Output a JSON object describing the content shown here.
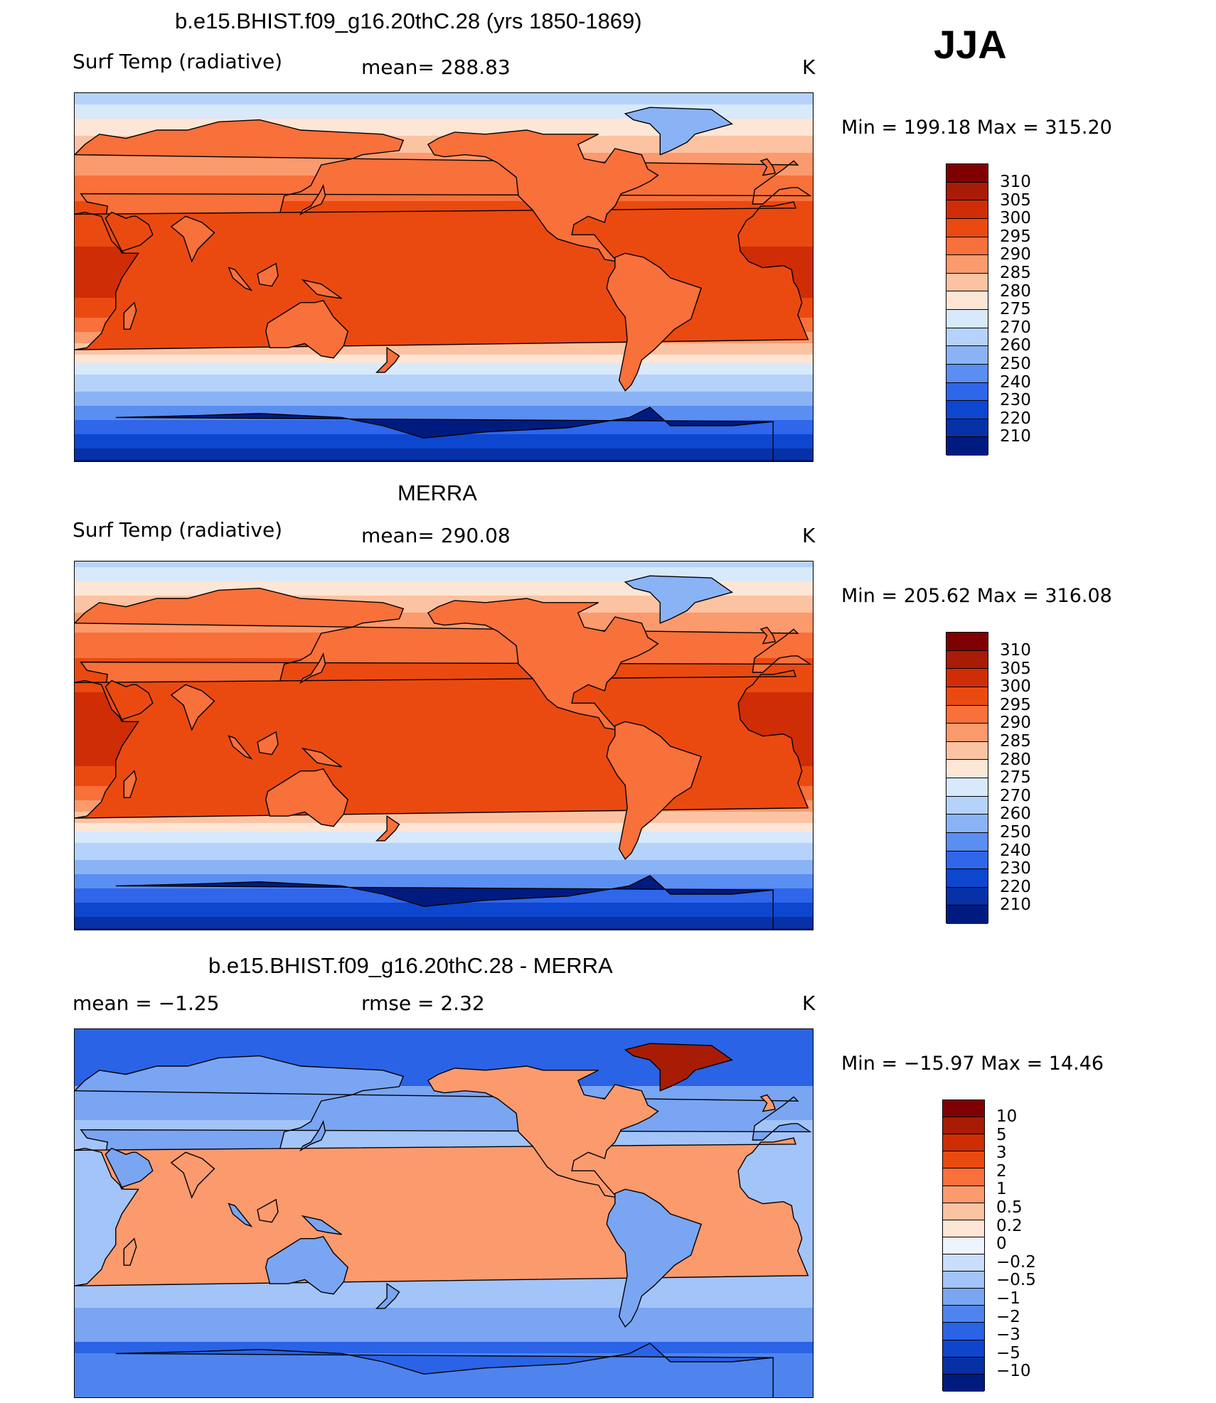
{
  "season": "JJA",
  "panels": [
    {
      "title": "b.e15.BHIST.f09_g16.20thC.28 (yrs 1850-1869)",
      "left": "Surf Temp (radiative)",
      "mid": "mean= 288.83",
      "units": "K",
      "minmax": "Min = 199.18 Max = 315.20",
      "palette": "abs",
      "colorbar_labels": [
        "310",
        "305",
        "300",
        "295",
        "290",
        "285",
        "280",
        "275",
        "270",
        "260",
        "250",
        "240",
        "230",
        "220",
        "210"
      ]
    },
    {
      "title": "MERRA",
      "left": "Surf Temp (radiative)",
      "mid": "mean= 290.08",
      "units": "K",
      "minmax": "Min = 205.62 Max = 316.08",
      "palette": "abs",
      "colorbar_labels": [
        "310",
        "305",
        "300",
        "295",
        "290",
        "285",
        "280",
        "275",
        "270",
        "260",
        "250",
        "240",
        "230",
        "220",
        "210"
      ]
    },
    {
      "title": "b.e15.BHIST.f09_g16.20thC.28 - MERRA",
      "left": "mean =   −1.25",
      "mid": "rmse =    2.32",
      "units": "K",
      "minmax": "Min = −15.97 Max =  14.46",
      "palette": "diff",
      "colorbar_labels": [
        "10",
        "5",
        "3",
        "2",
        "1",
        "0.5",
        "0.2",
        "0",
        "−0.2",
        "−0.5",
        "−1",
        "−2",
        "−3",
        "−5",
        "−10"
      ]
    }
  ],
  "palettes": {
    "abs": [
      "#7f0000",
      "#a81c05",
      "#cf2d05",
      "#ea4a10",
      "#f8703a",
      "#fb9a6d",
      "#fcc3a3",
      "#fee6d6",
      "#d8e9fb",
      "#b5d3fa",
      "#8ab3f6",
      "#5b8ef1",
      "#2f66ea",
      "#0d46cf",
      "#0731a6",
      "#001b80"
    ],
    "diff": [
      "#7f0000",
      "#a81c05",
      "#cf2d05",
      "#ea4a10",
      "#f8703a",
      "#fb9a6d",
      "#fcc3a3",
      "#fee6d6",
      "#eef4fd",
      "#c9defb",
      "#a3c4f8",
      "#7aa5f3",
      "#4f84ee",
      "#2a63e6",
      "#0f45cd",
      "#0630a3",
      "#001b80"
    ]
  }
}
